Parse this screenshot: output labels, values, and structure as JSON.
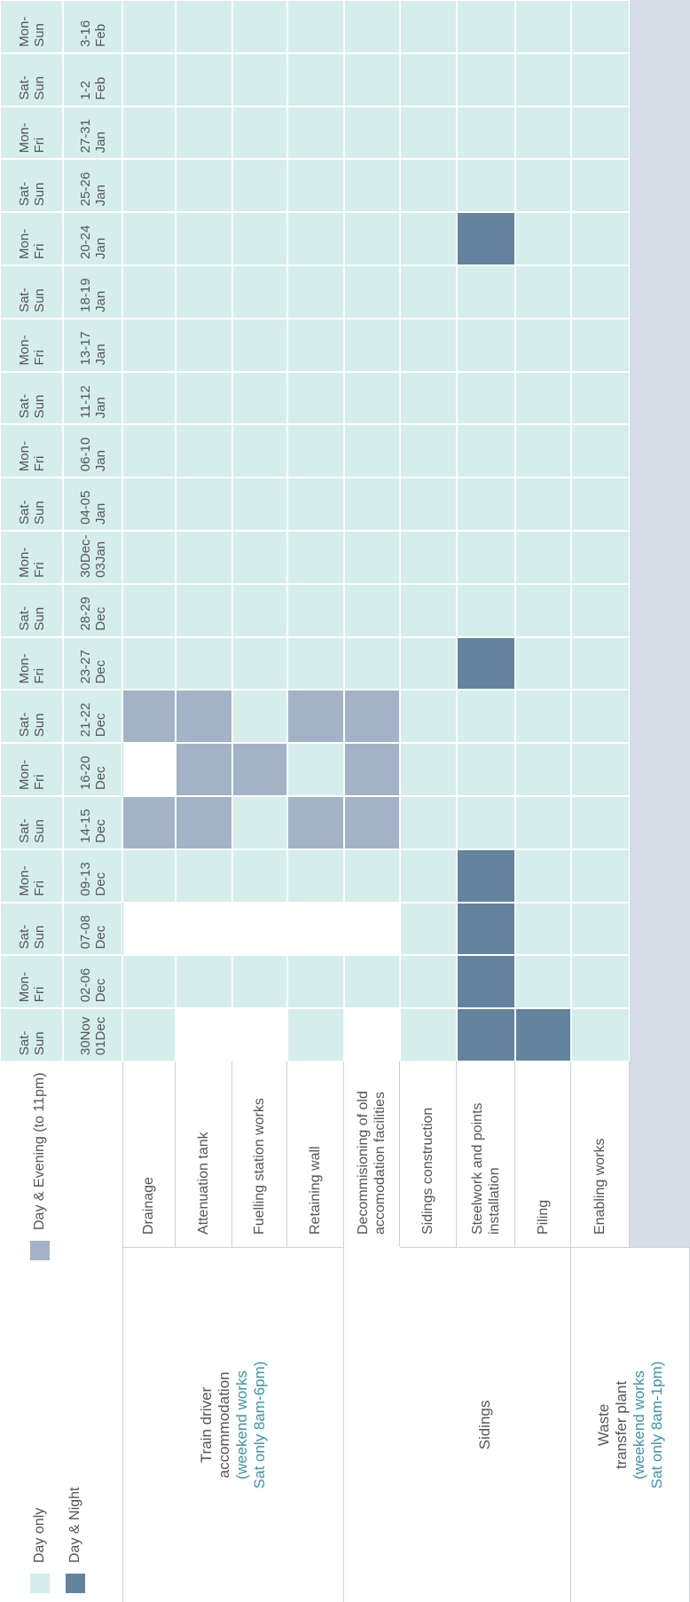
{
  "legend": [
    {
      "label": "Day only",
      "color": "#d5eeec"
    },
    {
      "label": "Day & Evening (to 11pm)",
      "color": "#a3b2c7"
    },
    {
      "label": "Day & Night",
      "color": "#63839f"
    }
  ],
  "columns": [
    {
      "days": "Sat-\nSun",
      "dates": "30Nov\n01Dec"
    },
    {
      "days": "Mon-\nFri",
      "dates": "02-06\nDec"
    },
    {
      "days": "Sat-\nSun",
      "dates": "07-08\nDec"
    },
    {
      "days": "Mon-\nFri",
      "dates": "09-13\nDec"
    },
    {
      "days": "Sat-\nSun",
      "dates": "14-15\nDec"
    },
    {
      "days": "Mon-\nFri",
      "dates": "16-20\nDec"
    },
    {
      "days": "Sat-\nSun",
      "dates": "21-22\nDec"
    },
    {
      "days": "Mon-\nFri",
      "dates": "23-27\nDec"
    },
    {
      "days": "Sat-\nSun",
      "dates": "28-29\nDec"
    },
    {
      "days": "Mon-\nFri",
      "dates": "30Dec-\n03Jan"
    },
    {
      "days": "Sat-\nSun",
      "dates": "04-05\nJan"
    },
    {
      "days": "Mon-\nFri",
      "dates": "06-10\nJan"
    },
    {
      "days": "Sat-\nSun",
      "dates": "11-12\nJan"
    },
    {
      "days": "Mon-\nFri",
      "dates": "13-17\nJan"
    },
    {
      "days": "Sat-\nSun",
      "dates": "18-19\nJan"
    },
    {
      "days": "Mon-\nFri",
      "dates": "20-24\nJan"
    },
    {
      "days": "Sat-\nSun",
      "dates": "25-26\nJan"
    },
    {
      "days": "Mon-\nFri",
      "dates": "27-31\nJan"
    },
    {
      "days": "Sat-\nSun",
      "dates": "1-2\nFeb"
    },
    {
      "days": "Mon-\nSun",
      "dates": "3-16\nFeb"
    }
  ],
  "groups": [
    {
      "label": "Train driver\naccommodation",
      "note": "(weekend works\nSat only 8am-6pm)",
      "rows": [
        {
          "label": "Drainage",
          "cells": [
            0,
            0,
            null,
            0,
            1,
            null,
            1,
            0,
            0,
            0,
            0,
            0,
            0,
            0,
            0,
            0,
            0,
            0,
            0,
            0
          ]
        },
        {
          "label": "Attenuation tank",
          "cells": [
            null,
            0,
            null,
            0,
            1,
            1,
            1,
            0,
            0,
            0,
            0,
            0,
            0,
            0,
            0,
            0,
            0,
            0,
            0,
            0
          ]
        },
        {
          "label": "Fuelling station works",
          "cells": [
            null,
            0,
            null,
            0,
            0,
            1,
            0,
            0,
            0,
            0,
            0,
            0,
            0,
            0,
            0,
            0,
            0,
            0,
            0,
            0
          ]
        },
        {
          "label": "Retaining wall",
          "cells": [
            0,
            0,
            null,
            0,
            1,
            0,
            1,
            0,
            0,
            0,
            0,
            0,
            0,
            0,
            0,
            0,
            0,
            0,
            0,
            0
          ]
        },
        {
          "label": "Decommisioning of old\naccomodation facilities",
          "cells": [
            null,
            0,
            null,
            0,
            1,
            1,
            1,
            0,
            0,
            0,
            0,
            0,
            0,
            0,
            0,
            0,
            0,
            0,
            0,
            0
          ]
        }
      ]
    },
    {
      "label": "Sidings",
      "note": null,
      "rows": [
        {
          "label": "Sidings construction",
          "cells": [
            0,
            0,
            0,
            0,
            0,
            0,
            0,
            0,
            0,
            0,
            0,
            0,
            0,
            0,
            0,
            0,
            0,
            0,
            0,
            0
          ]
        },
        {
          "label": "Steelwork and points\ninstallation",
          "cells": [
            2,
            2,
            2,
            2,
            0,
            0,
            0,
            2,
            0,
            0,
            0,
            0,
            0,
            0,
            0,
            2,
            0,
            0,
            0,
            0
          ]
        },
        {
          "label": "Piling",
          "cells": [
            2,
            0,
            0,
            0,
            0,
            0,
            0,
            0,
            0,
            0,
            0,
            0,
            0,
            0,
            0,
            0,
            0,
            0,
            0,
            0
          ]
        }
      ]
    },
    {
      "label": "Waste\ntransfer plant",
      "note": "(weekend works\nSat only 8am-1pm)",
      "rows": [
        {
          "label": "Enabling works",
          "cells": [
            0,
            0,
            0,
            0,
            0,
            0,
            0,
            0,
            0,
            0,
            0,
            0,
            0,
            0,
            0,
            0,
            0,
            0,
            0,
            0
          ]
        }
      ]
    }
  ]
}
